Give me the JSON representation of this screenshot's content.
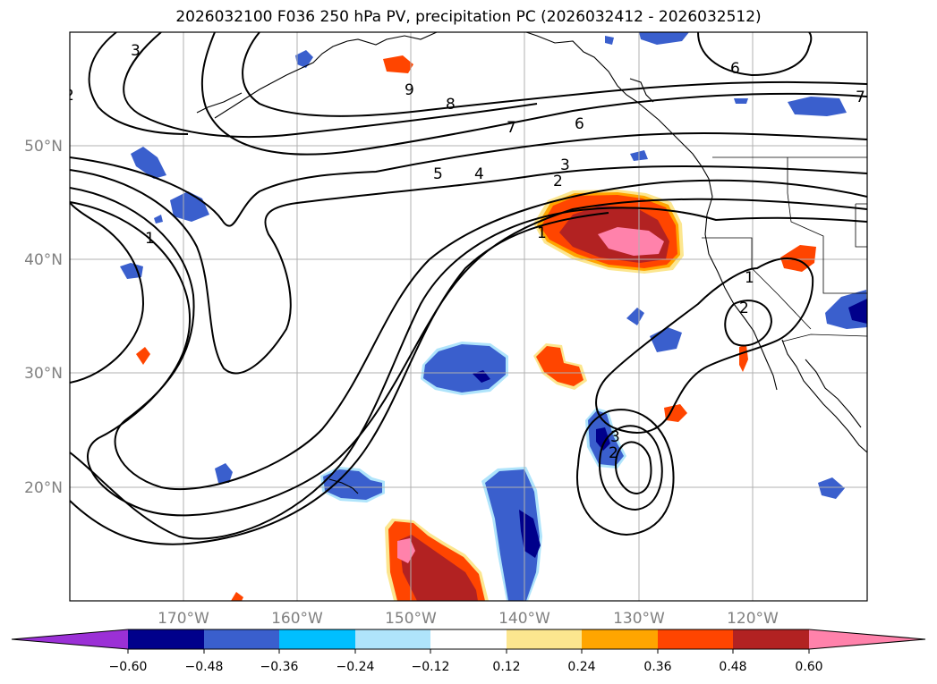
{
  "title": "2026032100 F036 250 hPa PV, precipitation PC (2026032412 - 2026032512)",
  "colors": {
    "neg_060": "#9b30d6",
    "neg_048": "#00008b",
    "neg_036": "#3a5fcd",
    "neg_024": "#00bfff",
    "neg_012": "#afe4fb",
    "zero": "#ffffff",
    "pos_012": "#fce68f",
    "pos_024": "#ffa500",
    "pos_036": "#ff4500",
    "pos_048": "#b22222",
    "pos_060": "#ff82ab",
    "contour": "#000000",
    "grid": "#b0b0b0",
    "coast": "#000000"
  },
  "chart_data": {
    "type": "contour-map",
    "title": "2026032100 F036 250 hPa PV, precipitation PC (2026032412 - 2026032512)",
    "lon_labels": [
      "170°W",
      "160°W",
      "150°W",
      "140°W",
      "130°W",
      "120°W"
    ],
    "lat_labels": [
      "50°N",
      "40°N",
      "30°N",
      "20°N"
    ],
    "lon_range": [
      -180,
      -110
    ],
    "lat_range": [
      10,
      60
    ],
    "colorbar_ticks": [
      "−0.60",
      "−0.48",
      "−0.36",
      "−0.24",
      "−0.12",
      "0.12",
      "0.24",
      "0.36",
      "0.48",
      "0.60"
    ],
    "contour_labels": [
      "3",
      "2",
      "9",
      "8",
      "7",
      "6",
      "5",
      "4",
      "3",
      "2",
      "1",
      "1",
      "2",
      "1",
      "6",
      "7",
      "3",
      "2"
    ]
  }
}
